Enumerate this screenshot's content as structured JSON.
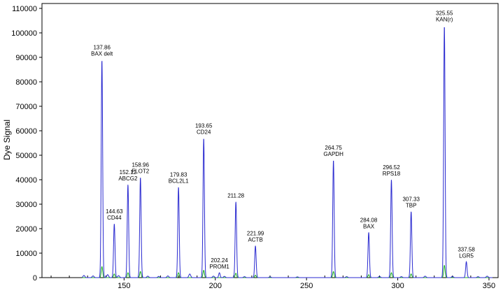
{
  "chart_data": {
    "type": "line",
    "ylabel": "Dye Signal",
    "xlabel": "",
    "xlim": [
      105,
      355
    ],
    "ylim": [
      0,
      112000
    ],
    "x_ticks": [
      150,
      200,
      250,
      300,
      350
    ],
    "y_ticks": [
      0,
      10000,
      20000,
      30000,
      40000,
      50000,
      60000,
      70000,
      80000,
      90000,
      100000,
      110000
    ],
    "grid": false,
    "series": [
      {
        "color": "#2a2ad0",
        "peaks": [
          {
            "x": 137.86,
            "y": 89000,
            "size": "137.86",
            "gene": "BAX delt"
          },
          {
            "x": 144.63,
            "y": 22000,
            "size": "144.63",
            "gene": "CD44"
          },
          {
            "x": 152.12,
            "y": 38000,
            "size": "152.12",
            "gene": "ABCG2"
          },
          {
            "x": 158.96,
            "y": 41000,
            "size": "158.96",
            "gene": "FLOT2"
          },
          {
            "x": 179.83,
            "y": 37000,
            "size": "179.83",
            "gene": "BCL2L1"
          },
          {
            "x": 193.65,
            "y": 57000,
            "size": "193.65",
            "gene": "CD24"
          },
          {
            "x": 202.24,
            "y": 2000,
            "size": "202.24",
            "gene": "PROM1"
          },
          {
            "x": 211.28,
            "y": 31000,
            "size": "211.28",
            "gene": ""
          },
          {
            "x": 221.99,
            "y": 13000,
            "size": "221.99",
            "gene": "ACTB"
          },
          {
            "x": 264.75,
            "y": 48000,
            "size": "264.75",
            "gene": "GAPDH"
          },
          {
            "x": 284.08,
            "y": 18500,
            "size": "284.08",
            "gene": "BAX"
          },
          {
            "x": 296.52,
            "y": 40000,
            "size": "296.52",
            "gene": "RPS18"
          },
          {
            "x": 307.33,
            "y": 27000,
            "size": "307.33",
            "gene": "TBP"
          },
          {
            "x": 325.55,
            "y": 103000,
            "size": "325.55",
            "gene": "KAN(r)"
          },
          {
            "x": 337.58,
            "y": 6500,
            "size": "337.58",
            "gene": "LGR5"
          }
        ]
      },
      {
        "color": "#20b020",
        "peaks": [
          {
            "x": 137.86,
            "y": 4500
          },
          {
            "x": 144.63,
            "y": 1500
          },
          {
            "x": 152.12,
            "y": 2000
          },
          {
            "x": 158.96,
            "y": 2500
          },
          {
            "x": 179.83,
            "y": 2000
          },
          {
            "x": 193.65,
            "y": 3000
          },
          {
            "x": 211.28,
            "y": 1800
          },
          {
            "x": 221.99,
            "y": 1000
          },
          {
            "x": 264.75,
            "y": 2500
          },
          {
            "x": 284.08,
            "y": 1200
          },
          {
            "x": 296.52,
            "y": 2000
          },
          {
            "x": 307.33,
            "y": 1500
          },
          {
            "x": 325.55,
            "y": 5000
          }
        ]
      }
    ]
  }
}
